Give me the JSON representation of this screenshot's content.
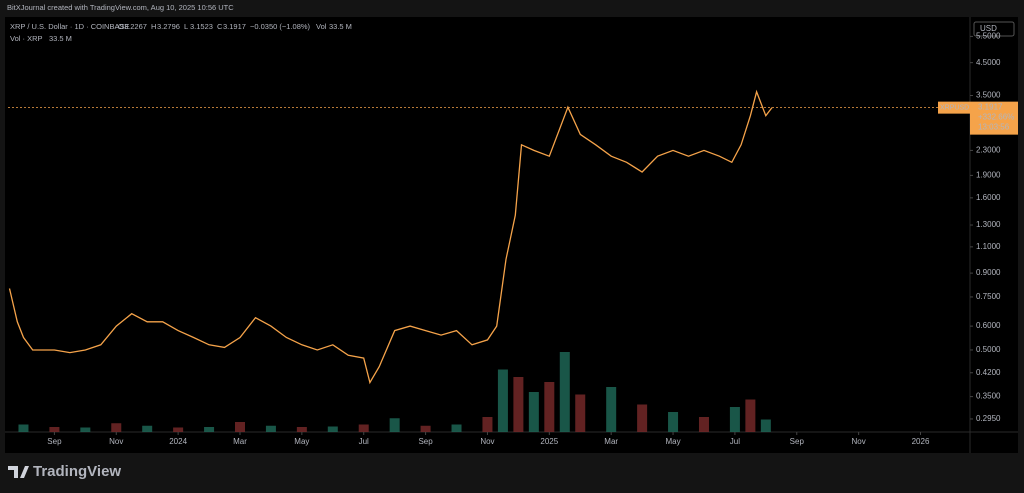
{
  "header": {
    "attribution": "BitXJournal created with TradingView.com, Aug 10, 2025 10:56 UTC",
    "symbol": "XRP / U.S. Dollar · 1D · COINBASE",
    "ohlc": [
      {
        "key": "O",
        "text": "3.2267"
      },
      {
        "key": "H",
        "text": "3.2796"
      },
      {
        "key": "L",
        "text": "3.1523"
      },
      {
        "key": "C",
        "text": "3.1917"
      }
    ],
    "change": "−0.0350 (−1.08%)",
    "vol_key": "Vol",
    "vol": "33.5 M",
    "vol_legend": "Vol · XRP",
    "vol_legend_value": "33.5 M",
    "currency": "USD",
    "brand": "TradingView"
  },
  "chart_data": {
    "type": "line",
    "log_scale": true,
    "price_label": {
      "symbol": "XRPUSD",
      "price": "3.1917",
      "change": "+332.66%",
      "countdown": "13:03:56"
    },
    "xlim": [
      -1.5,
      29.6
    ],
    "xticks": [
      {
        "value": 0,
        "label": "Sep"
      },
      {
        "value": 2,
        "label": "Nov"
      },
      {
        "value": 4,
        "label": "2024"
      },
      {
        "value": 6,
        "label": "Mar"
      },
      {
        "value": 8,
        "label": "May"
      },
      {
        "value": 10,
        "label": "Jul"
      },
      {
        "value": 12,
        "label": "Sep"
      },
      {
        "value": 14,
        "label": "Nov"
      },
      {
        "value": 16,
        "label": "2025"
      },
      {
        "value": 18,
        "label": "Mar"
      },
      {
        "value": 20,
        "label": "May"
      },
      {
        "value": 22,
        "label": "Jul"
      },
      {
        "value": 24,
        "label": "Sep"
      },
      {
        "value": 26,
        "label": "Nov"
      },
      {
        "value": 28,
        "label": "2026"
      }
    ],
    "ylim": [
      0.267,
      6.38
    ],
    "yticks": [
      {
        "value": 0.295,
        "label": "0.2950"
      },
      {
        "value": 0.35,
        "label": "0.3500"
      },
      {
        "value": 0.42,
        "label": "0.4200"
      },
      {
        "value": 0.5,
        "label": "0.5000"
      },
      {
        "value": 0.6,
        "label": "0.6000"
      },
      {
        "value": 0.75,
        "label": "0.7500"
      },
      {
        "value": 0.9,
        "label": "0.9000"
      },
      {
        "value": 1.1,
        "label": "1.1000"
      },
      {
        "value": 1.3,
        "label": "1.3000"
      },
      {
        "value": 1.6,
        "label": "1.6000"
      },
      {
        "value": 1.9,
        "label": "1.9000"
      },
      {
        "value": 2.3,
        "label": "2.3000"
      },
      {
        "value": 3.5,
        "label": "3.5000"
      },
      {
        "value": 4.5,
        "label": "4.5000"
      },
      {
        "value": 5.5,
        "label": "5.5000"
      }
    ],
    "series": [
      {
        "name": "XRP",
        "color": "#f5a34a",
        "x": [
          -1.45,
          -1.2,
          -1,
          -0.7,
          0,
          0.5,
          1,
          1.5,
          2,
          2.5,
          3,
          3.5,
          4,
          4.5,
          5,
          5.5,
          6,
          6.5,
          7,
          7.5,
          8,
          8.5,
          9,
          9.5,
          10,
          10.2,
          10.5,
          11,
          11.5,
          12,
          12.5,
          13,
          13.5,
          14,
          14.3,
          14.6,
          14.9,
          15.1,
          15.5,
          16,
          16.6,
          17,
          17.5,
          18,
          18.5,
          19,
          19.5,
          20,
          20.5,
          21,
          21.5,
          21.9,
          22.2,
          22.5,
          22.7,
          23,
          23.2
        ],
        "values": [
          0.8,
          0.62,
          0.55,
          0.5,
          0.5,
          0.49,
          0.5,
          0.52,
          0.6,
          0.66,
          0.62,
          0.62,
          0.58,
          0.55,
          0.52,
          0.51,
          0.55,
          0.64,
          0.6,
          0.55,
          0.52,
          0.5,
          0.52,
          0.48,
          0.47,
          0.39,
          0.44,
          0.58,
          0.6,
          0.58,
          0.56,
          0.58,
          0.52,
          0.54,
          0.6,
          1.0,
          1.4,
          2.4,
          2.3,
          2.2,
          3.2,
          2.6,
          2.4,
          2.2,
          2.1,
          1.95,
          2.2,
          2.3,
          2.2,
          2.3,
          2.2,
          2.1,
          2.4,
          3.0,
          3.6,
          3.0,
          3.19
        ]
      }
    ],
    "volume": {
      "up_color": "#1f6b5a",
      "down_color": "#7a2a2a",
      "ylim": [
        0,
        400
      ],
      "x": [
        -1,
        0,
        1,
        2,
        3,
        4,
        5,
        6,
        7,
        8,
        9,
        10,
        11,
        12,
        13,
        14,
        14.5,
        15,
        15.5,
        16,
        16.5,
        17,
        18,
        19,
        20,
        21,
        22,
        22.5,
        23
      ],
      "values": [
        30,
        20,
        18,
        35,
        25,
        18,
        20,
        40,
        25,
        20,
        22,
        30,
        55,
        25,
        30,
        60,
        250,
        220,
        160,
        200,
        320,
        150,
        180,
        110,
        80,
        60,
        100,
        130,
        50
      ]
    }
  }
}
